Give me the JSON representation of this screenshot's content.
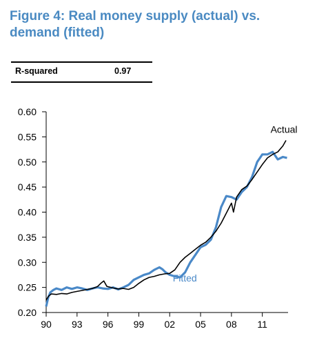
{
  "header": {
    "title": "Figure 4: Real money supply (actual) vs. demand (fitted)"
  },
  "stats": {
    "label": "R-squared",
    "value": "0.97"
  },
  "chart_data": {
    "type": "line",
    "title": "Figure 4: Real money supply (actual) vs. demand (fitted)",
    "xlabel": "",
    "ylabel": "",
    "xlim": [
      1990,
      2013.5
    ],
    "ylim": [
      0.2,
      0.6
    ],
    "yticks": [
      0.2,
      0.25,
      0.3,
      0.35,
      0.4,
      0.45,
      0.5,
      0.55,
      0.6
    ],
    "ytick_labels": [
      "0.20",
      "0.25",
      "0.30",
      "0.35",
      "0.40",
      "0.45",
      "0.50",
      "0.55",
      "0.60"
    ],
    "xticks": [
      1990,
      1993,
      1996,
      1999,
      2002,
      2005,
      2008,
      2011
    ],
    "xtick_labels": [
      "90",
      "93",
      "96",
      "99",
      "02",
      "05",
      "08",
      "11"
    ],
    "grid": false,
    "legend": "inline labels",
    "series": [
      {
        "name": "Actual",
        "color": "#000000",
        "x": [
          1990.0,
          1990.25,
          1990.5,
          1991.0,
          1991.5,
          1992.0,
          1992.5,
          1993.0,
          1993.5,
          1994.0,
          1994.5,
          1995.0,
          1995.3,
          1995.6,
          1995.9,
          1996.3,
          1996.7,
          1997.0,
          1997.5,
          1998.0,
          1998.5,
          1999.0,
          1999.5,
          2000.0,
          2000.5,
          2001.0,
          2001.5,
          2002.0,
          2002.5,
          2003.0,
          2003.5,
          2004.0,
          2004.5,
          2005.0,
          2005.5,
          2006.0,
          2006.5,
          2007.0,
          2007.5,
          2008.0,
          2008.2,
          2008.5,
          2009.0,
          2009.5,
          2010.0,
          2010.5,
          2011.0,
          2011.5,
          2012.0,
          2012.5,
          2013.0,
          2013.3
        ],
        "values": [
          0.225,
          0.233,
          0.237,
          0.236,
          0.238,
          0.237,
          0.24,
          0.242,
          0.244,
          0.246,
          0.248,
          0.252,
          0.258,
          0.263,
          0.252,
          0.25,
          0.248,
          0.247,
          0.248,
          0.246,
          0.25,
          0.258,
          0.265,
          0.27,
          0.272,
          0.275,
          0.277,
          0.278,
          0.285,
          0.3,
          0.31,
          0.318,
          0.326,
          0.334,
          0.34,
          0.35,
          0.362,
          0.378,
          0.398,
          0.418,
          0.4,
          0.43,
          0.445,
          0.452,
          0.465,
          0.48,
          0.495,
          0.508,
          0.515,
          0.52,
          0.532,
          0.543
        ]
      },
      {
        "name": "Fitted",
        "color": "#4A89C8",
        "x": [
          1990.0,
          1990.2,
          1990.4,
          1990.7,
          1991.0,
          1991.5,
          1992.0,
          1992.5,
          1993.0,
          1993.5,
          1994.0,
          1994.5,
          1995.0,
          1995.5,
          1996.0,
          1996.5,
          1997.0,
          1997.5,
          1998.0,
          1998.5,
          1999.0,
          1999.5,
          2000.0,
          2000.5,
          2001.0,
          2001.3,
          2001.6,
          2002.0,
          2002.5,
          2003.0,
          2003.5,
          2004.0,
          2004.5,
          2005.0,
          2005.5,
          2006.0,
          2006.5,
          2007.0,
          2007.5,
          2008.0,
          2008.5,
          2009.0,
          2009.5,
          2010.0,
          2010.5,
          2011.0,
          2011.5,
          2012.0,
          2012.5,
          2013.0,
          2013.4
        ],
        "values": [
          0.212,
          0.23,
          0.24,
          0.245,
          0.248,
          0.245,
          0.25,
          0.247,
          0.25,
          0.248,
          0.245,
          0.248,
          0.25,
          0.248,
          0.247,
          0.25,
          0.246,
          0.25,
          0.255,
          0.265,
          0.27,
          0.275,
          0.278,
          0.285,
          0.29,
          0.286,
          0.28,
          0.275,
          0.272,
          0.27,
          0.28,
          0.3,
          0.315,
          0.33,
          0.335,
          0.345,
          0.37,
          0.41,
          0.432,
          0.43,
          0.425,
          0.44,
          0.45,
          0.47,
          0.5,
          0.515,
          0.515,
          0.52,
          0.505,
          0.51,
          0.508
        ]
      }
    ],
    "annotations": [
      {
        "text": "Actual",
        "x": 2011.8,
        "y": 0.558,
        "color": "#000000"
      },
      {
        "text": "Fitted",
        "x": 2002.3,
        "y": 0.262,
        "color": "#4A89C8"
      }
    ]
  }
}
